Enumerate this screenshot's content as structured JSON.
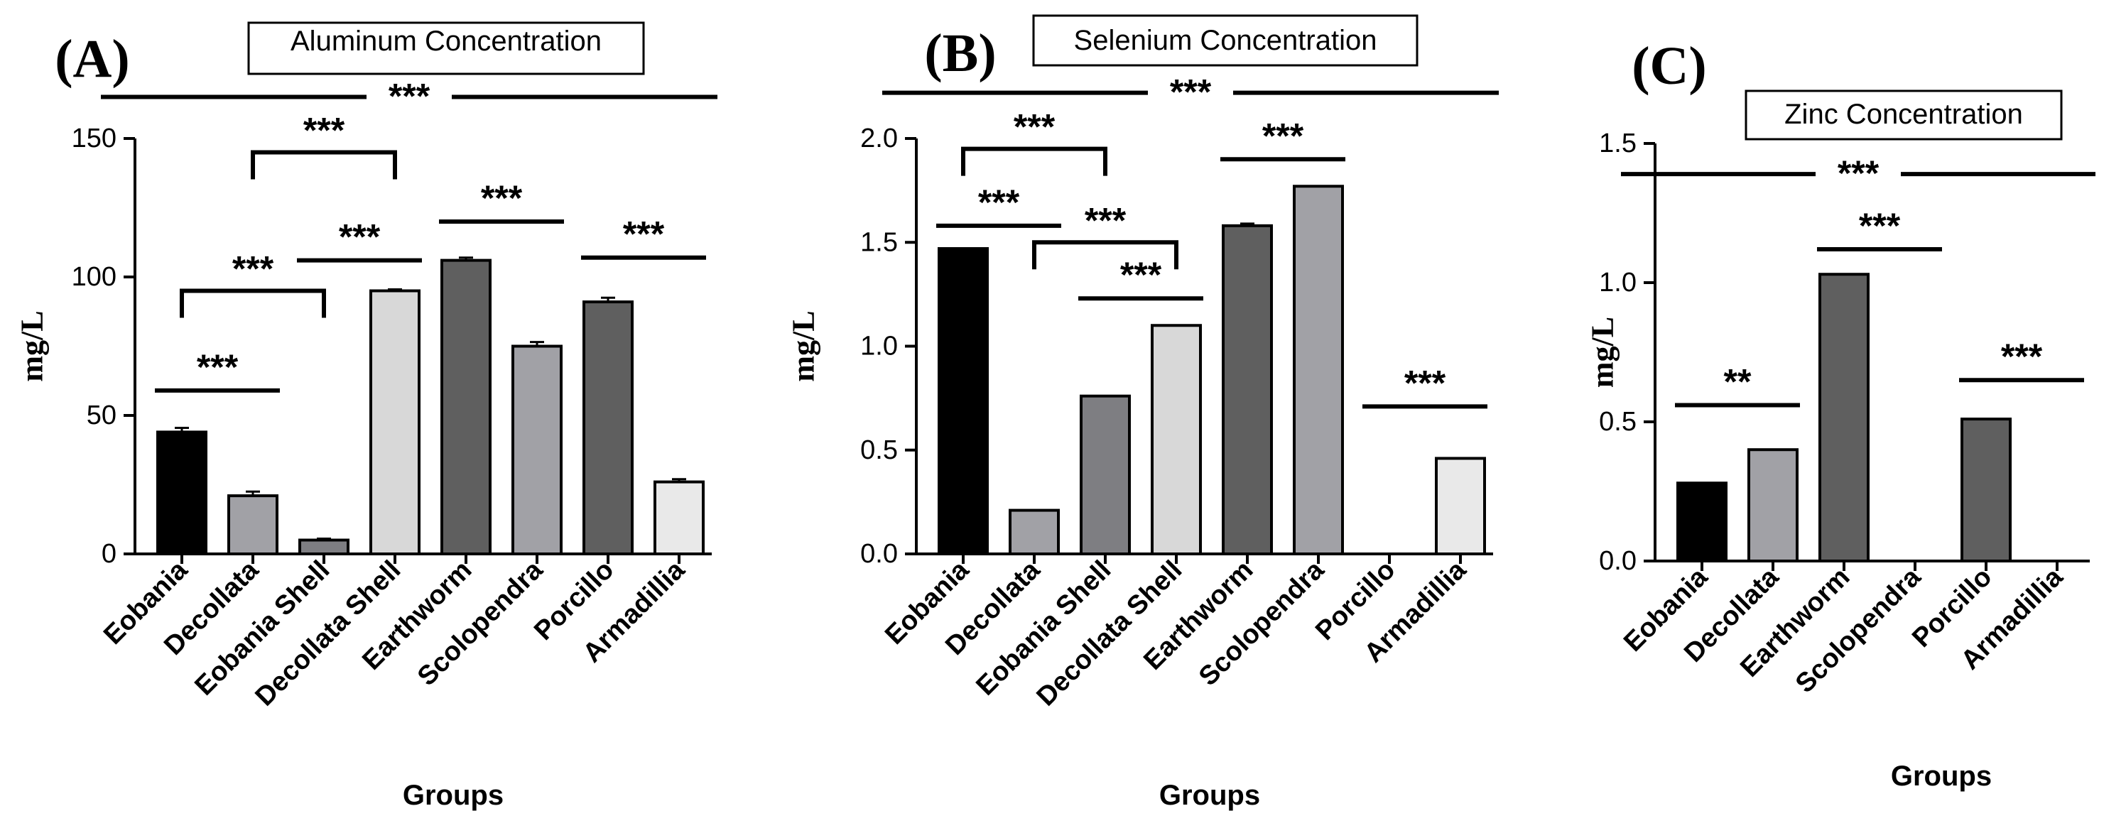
{
  "chart_data": [
    {
      "type": "bar",
      "panel": "(A)",
      "title": "Aluminum Concentration",
      "xlabel": "Groups",
      "ylabel": "mg/L",
      "ylim": [
        0,
        150
      ],
      "yticks": [
        0,
        50,
        100,
        150
      ],
      "ytick_labels": [
        "0",
        "50",
        "100",
        "150"
      ],
      "categories": [
        "Eobania",
        "Decollata",
        "Eobania Shell",
        "Decollata Shell",
        "Earthworm",
        "Scolopendra",
        "Porcillo",
        "Armadillia"
      ],
      "values": [
        44,
        21,
        5,
        95,
        106,
        75,
        91,
        26
      ],
      "errors": [
        1.5,
        1.5,
        0.5,
        0.5,
        1.0,
        1.5,
        1.5,
        1.0
      ],
      "colors": [
        "#000000",
        "#a1a1a6",
        "#7e7e82",
        "#d8d8d8",
        "#5f5f5f",
        "#a1a1a6",
        "#5f5f5f",
        "#e9e9e9"
      ],
      "significance": [
        {
          "label": "***",
          "type": "line",
          "from": 0,
          "to": 7,
          "y": 165,
          "gap": true
        },
        {
          "label": "***",
          "type": "bracket",
          "from": 1,
          "to": 3,
          "y": 145,
          "drop": 145
        },
        {
          "label": "***",
          "type": "bracket",
          "from": 0,
          "to": 2,
          "y": 95,
          "drop": 95
        },
        {
          "label": "***",
          "type": "line",
          "from": 2,
          "to": 3,
          "y": 106
        },
        {
          "label": "***",
          "type": "line",
          "from": 4,
          "to": 5,
          "y": 120
        },
        {
          "label": "***",
          "type": "line",
          "from": 6,
          "to": 7,
          "y": 107
        },
        {
          "label": "***",
          "type": "line",
          "from": 0,
          "to": 1,
          "y": 59
        }
      ]
    },
    {
      "type": "bar",
      "panel": "(B)",
      "title": "Selenium Concentration",
      "xlabel": "Groups",
      "ylabel": "mg/L",
      "ylim": [
        0,
        2.0
      ],
      "yticks": [
        0,
        0.5,
        1.0,
        1.5,
        2.0
      ],
      "ytick_labels": [
        "0.0",
        "0.5",
        "1.0",
        "1.5",
        "2.0"
      ],
      "categories": [
        "Eobania",
        "Decollata",
        "Eobania Shell",
        "Decollata Shell",
        "Earthworm",
        "Scolopendra",
        "Porcillo",
        "Armadillia"
      ],
      "values": [
        1.47,
        0.21,
        0.76,
        1.1,
        1.58,
        1.77,
        0,
        0.46
      ],
      "errors": [
        0,
        0,
        0,
        0,
        0.01,
        0,
        0,
        0
      ],
      "colors": [
        "#000000",
        "#a1a1a6",
        "#7e7e82",
        "#d8d8d8",
        "#5f5f5f",
        "#a1a1a6",
        "#5f5f5f",
        "#e9e9e9"
      ],
      "significance": [
        {
          "label": "***",
          "type": "line",
          "from": 0,
          "to": 7,
          "y": 2.22,
          "gap": true
        },
        {
          "label": "***",
          "type": "bracket",
          "from": 0,
          "to": 2,
          "y": 1.95,
          "drop": 1.95
        },
        {
          "label": "***",
          "type": "line",
          "from": 0,
          "to": 1,
          "y": 1.58
        },
        {
          "label": "***",
          "type": "bracket",
          "from": 1,
          "to": 3,
          "y": 1.5,
          "drop": 1.5
        },
        {
          "label": "***",
          "type": "line",
          "from": 2,
          "to": 3,
          "y": 1.23
        },
        {
          "label": "***",
          "type": "line",
          "from": 4,
          "to": 5,
          "y": 1.9
        },
        {
          "label": "***",
          "type": "line",
          "from": 6,
          "to": 7,
          "y": 0.71
        }
      ]
    },
    {
      "type": "bar",
      "panel": "(C)",
      "title": "Zinc Concentration",
      "xlabel": "Groups",
      "ylabel": "mg/L",
      "ylim": [
        0,
        1.5
      ],
      "yticks": [
        0,
        0.5,
        1.0,
        1.5
      ],
      "ytick_labels": [
        "0.0",
        "0.5",
        "1.0",
        "1.5"
      ],
      "categories": [
        "Eobania",
        "Decollata",
        "Earthworm",
        "Scolopendra",
        "Porcillo",
        "Armadillia"
      ],
      "values": [
        0.28,
        0.4,
        1.03,
        0,
        0.51,
        0
      ],
      "errors": [
        0,
        0,
        0,
        0,
        0,
        0
      ],
      "colors": [
        "#000000",
        "#a1a1a6",
        "#5f5f5f",
        "#a1a1a6",
        "#5f5f5f",
        "#e9e9e9"
      ],
      "significance": [
        {
          "label": "***",
          "type": "line",
          "from": 0,
          "to": 5,
          "y": 1.39,
          "gap": true
        },
        {
          "label": "***",
          "type": "line",
          "from": 2,
          "to": 3,
          "y": 1.12
        },
        {
          "label": "**",
          "type": "line",
          "from": 0,
          "to": 1,
          "y": 0.56
        },
        {
          "label": "***",
          "type": "line",
          "from": 4,
          "to": 5,
          "y": 0.65
        }
      ]
    }
  ]
}
